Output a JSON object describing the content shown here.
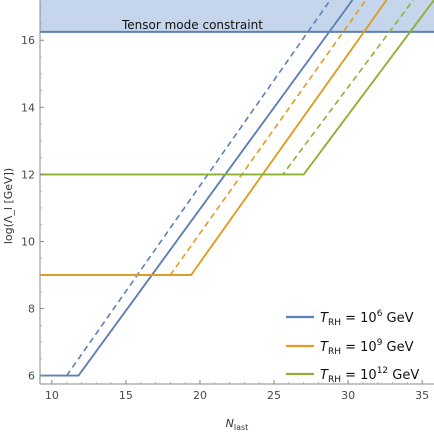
{
  "chart_data": {
    "type": "line",
    "xlabel": {
      "main": "N",
      "sub": "last"
    },
    "ylabel": "log(Λ_l [GeV])",
    "xlim": [
      9.2,
      35.8
    ],
    "ylim": [
      5.75,
      17.2
    ],
    "xticks": [
      10,
      15,
      20,
      25,
      30,
      35
    ],
    "yticks": [
      6,
      8,
      10,
      12,
      14,
      16
    ],
    "grid": false,
    "legend_position": "bottom-right",
    "constraint": {
      "label": "Tensor mode constraint",
      "y": 16.25,
      "fill_color": "#c5d6ec",
      "line_color": "#5e81b5"
    },
    "series": [
      {
        "legend": {
          "T": "T",
          "sub": "RH",
          "eq": " = 10",
          "exp": "6",
          "unit": " GeV"
        },
        "color": "#5e81b5",
        "solid": [
          [
            9.2,
            6.0
          ],
          [
            11.8,
            6.0
          ],
          [
            30.3,
            17.2
          ]
        ],
        "dashed": [
          [
            11.0,
            6.0
          ],
          [
            28.8,
            17.2
          ]
        ]
      },
      {
        "legend": {
          "T": "T",
          "sub": "RH",
          "eq": " = 10",
          "exp": "9",
          "unit": " GeV"
        },
        "color": "#e19c24",
        "solid": [
          [
            9.2,
            9.0
          ],
          [
            19.4,
            9.0
          ],
          [
            32.6,
            17.2
          ]
        ],
        "dashed": [
          [
            9.2,
            9.0
          ],
          [
            18.0,
            9.0
          ],
          [
            31.2,
            17.2
          ]
        ]
      },
      {
        "legend": {
          "T": "T",
          "sub": "RH",
          "eq": " = 10",
          "exp": "12",
          "unit": " GeV"
        },
        "color": "#8fb032",
        "solid": [
          [
            9.2,
            12.0
          ],
          [
            27.0,
            12.0
          ],
          [
            35.8,
            17.2
          ]
        ],
        "dashed": [
          [
            9.2,
            12.0
          ],
          [
            25.6,
            12.0
          ],
          [
            34.4,
            17.2
          ]
        ]
      }
    ]
  }
}
